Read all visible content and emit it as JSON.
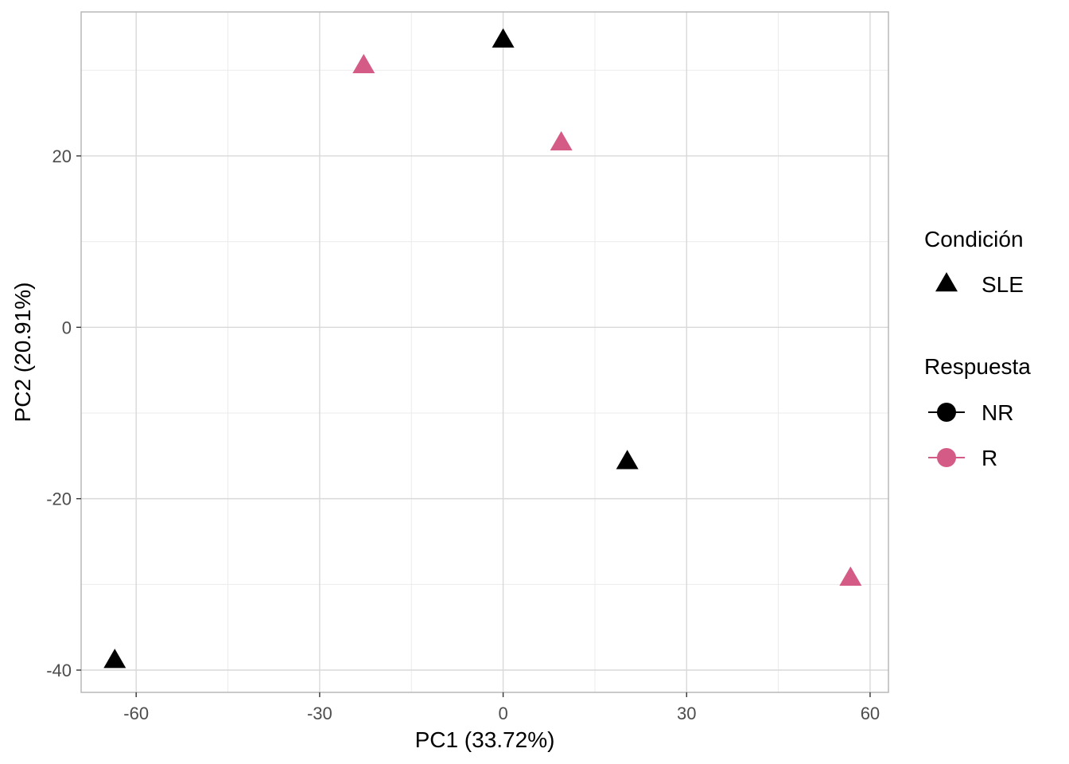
{
  "chart_data": {
    "type": "scatter",
    "title": "",
    "xlabel": "PC1 (33.72%)",
    "ylabel": "PC2 (20.91%)",
    "xlim": [
      -69,
      63
    ],
    "ylim": [
      -42.6,
      36.8
    ],
    "x_ticks": [
      -60,
      -30,
      0,
      30,
      60
    ],
    "y_ticks": [
      -40,
      -20,
      0,
      20
    ],
    "x_tick_labels": [
      "-60",
      "-30",
      "0",
      "30",
      "60"
    ],
    "y_tick_labels": [
      "-40",
      "-20",
      "0",
      "20"
    ],
    "grid": true,
    "legend_position": "right",
    "points": [
      {
        "x": 0.0,
        "y": 33.5,
        "condicion": "SLE",
        "respuesta": "NR"
      },
      {
        "x": -22.8,
        "y": 30.5,
        "condicion": "SLE",
        "respuesta": "R"
      },
      {
        "x": 9.5,
        "y": 21.5,
        "condicion": "SLE",
        "respuesta": "R"
      },
      {
        "x": 20.3,
        "y": -15.7,
        "condicion": "SLE",
        "respuesta": "NR"
      },
      {
        "x": 56.8,
        "y": -29.3,
        "condicion": "SLE",
        "respuesta": "R"
      },
      {
        "x": -63.5,
        "y": -38.9,
        "condicion": "SLE",
        "respuesta": "NR"
      }
    ],
    "colors": {
      "NR": "#000000",
      "R": "#d45b85"
    },
    "legend": {
      "condicion_title": "Condición",
      "condicion_items": [
        {
          "label": "SLE",
          "shape": "triangle"
        }
      ],
      "respuesta_title": "Respuesta",
      "respuesta_items": [
        {
          "label": "NR",
          "color": "#000000"
        },
        {
          "label": "R",
          "color": "#d45b85"
        }
      ]
    }
  }
}
